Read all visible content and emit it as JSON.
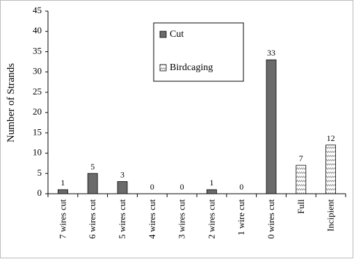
{
  "chart_data": {
    "type": "bar",
    "y_label": "Number of Strands",
    "categories": [
      "7 wires cut",
      "6 wires cut",
      "5 wires cut",
      "4 wires cut",
      "3 wires cut",
      "2 wires cut",
      "1 wire cut",
      "0 wires cut",
      "Full",
      "Incipient"
    ],
    "series": [
      {
        "name": "Cut",
        "color": "#6b6b6b",
        "hatch": false,
        "values": [
          1,
          5,
          3,
          0,
          0,
          1,
          0,
          33,
          null,
          null
        ]
      },
      {
        "name": "Birdcaging",
        "color": "#8a8a8a",
        "hatch": true,
        "values": [
          null,
          null,
          null,
          null,
          null,
          null,
          null,
          null,
          7,
          12
        ]
      }
    ],
    "ylim": [
      0,
      45
    ],
    "yticks": [
      0,
      5,
      10,
      15,
      20,
      25,
      30,
      35,
      40,
      45
    ],
    "grid": false
  }
}
